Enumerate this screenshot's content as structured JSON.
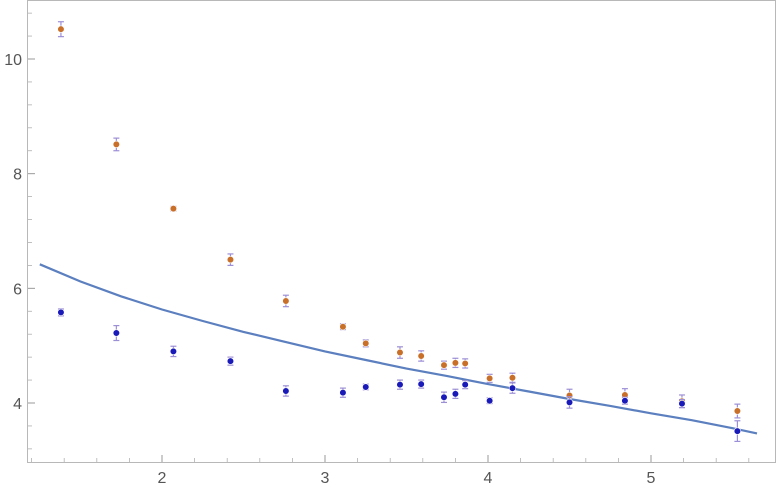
{
  "chart_data": {
    "type": "scatter",
    "title": "",
    "xlabel": "",
    "ylabel": "",
    "xlim": [
      1.2,
      5.7
    ],
    "ylim": [
      3.0,
      11.0
    ],
    "x_ticks": [
      2,
      3,
      4,
      5
    ],
    "y_ticks": [
      4,
      6,
      8,
      10
    ],
    "grid": false,
    "legend": "none",
    "colors": {
      "orange": "#c8702a",
      "blue": "#1a1ab8",
      "errorbar": "#9d8fd6",
      "fit": "#5b7fbf"
    },
    "series": [
      {
        "color_key": "orange",
        "x": [
          1.38,
          1.72,
          2.07,
          2.42,
          2.76,
          3.11,
          3.25,
          3.46,
          3.59,
          3.73,
          3.8,
          3.86,
          4.01,
          4.15,
          4.5,
          4.84,
          5.19,
          5.53
        ],
        "y": [
          10.52,
          8.51,
          7.39,
          6.5,
          5.78,
          5.33,
          5.04,
          4.88,
          4.82,
          4.66,
          4.7,
          4.69,
          4.43,
          4.44,
          4.13,
          4.14,
          4.03,
          3.86
        ],
        "err": [
          0.13,
          0.11,
          0.04,
          0.1,
          0.1,
          0.05,
          0.06,
          0.1,
          0.09,
          0.07,
          0.08,
          0.08,
          0.07,
          0.08,
          0.11,
          0.11,
          0.11,
          0.12
        ]
      },
      {
        "color_key": "blue",
        "x": [
          1.38,
          1.72,
          2.07,
          2.42,
          2.76,
          3.11,
          3.25,
          3.46,
          3.59,
          3.73,
          3.8,
          3.86,
          4.01,
          4.15,
          4.5,
          4.84,
          5.19,
          5.53
        ],
        "y": [
          5.58,
          5.22,
          4.9,
          4.73,
          4.21,
          4.18,
          4.28,
          4.32,
          4.33,
          4.1,
          4.16,
          4.32,
          4.04,
          4.26,
          4.01,
          4.04,
          3.99,
          3.51
        ],
        "err": [
          0.06,
          0.13,
          0.09,
          0.07,
          0.09,
          0.08,
          0.05,
          0.08,
          0.07,
          0.09,
          0.08,
          0.07,
          0.05,
          0.09,
          0.1,
          0.06,
          0.07,
          0.18
        ]
      },
      {
        "type": "line",
        "color_key": "fit",
        "x": [
          1.25,
          1.5,
          1.75,
          2.0,
          2.25,
          2.5,
          2.75,
          3.0,
          3.25,
          3.5,
          3.75,
          4.0,
          4.25,
          4.5,
          4.75,
          5.0,
          5.25,
          5.5,
          5.65
        ],
        "y": [
          6.42,
          6.12,
          5.86,
          5.63,
          5.43,
          5.24,
          5.07,
          4.9,
          4.75,
          4.6,
          4.47,
          4.33,
          4.2,
          4.07,
          3.95,
          3.82,
          3.7,
          3.56,
          3.47
        ]
      }
    ]
  }
}
